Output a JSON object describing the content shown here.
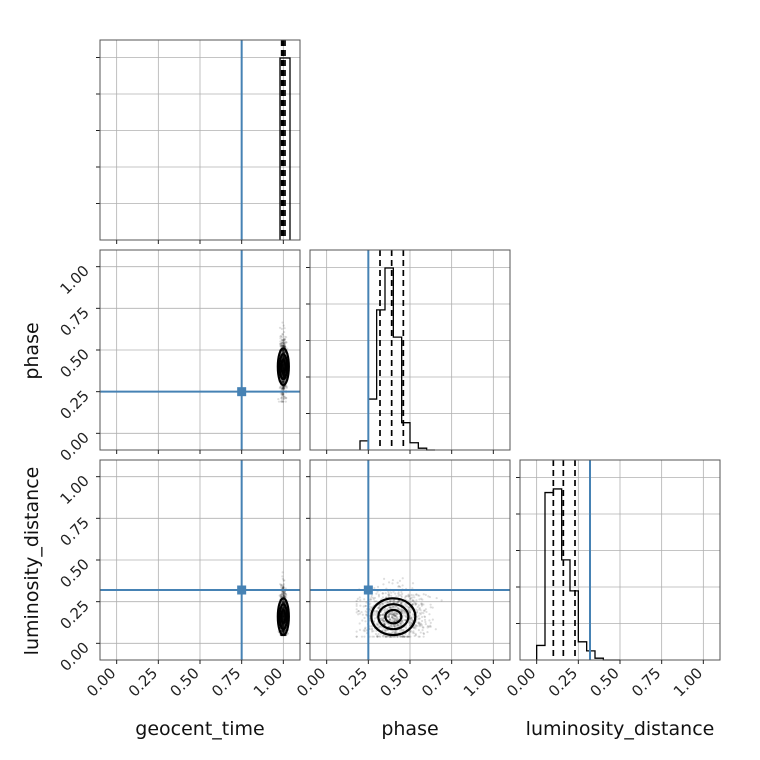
{
  "chart_data": {
    "type": "corner",
    "parameters": [
      "geocent_time",
      "phase",
      "luminosity_distance"
    ],
    "axis_range": [
      -0.1,
      1.1
    ],
    "ticks": [
      "0.00",
      "0.25",
      "0.50",
      "0.75",
      "1.00"
    ],
    "tick_values": [
      0,
      0.25,
      0.5,
      0.75,
      1.0
    ],
    "grid": true,
    "colors": {
      "truth": "#4682b4",
      "samples": "#000000"
    },
    "truths": {
      "geocent_time": 0.75,
      "phase": 0.25,
      "luminosity_distance": 0.32
    },
    "quantiles": {
      "geocent_time": [
        0.99,
        1.0,
        1.01
      ],
      "phase": [
        0.32,
        0.39,
        0.46
      ],
      "luminosity_distance": [
        0.1,
        0.16,
        0.23
      ]
    },
    "marginals": {
      "geocent_time": {
        "bin_edges": [
          0.98,
          1.04
        ],
        "counts": [
          1.0
        ]
      },
      "phase": {
        "bin_edges": [
          0.2,
          0.25,
          0.3,
          0.35,
          0.4,
          0.45,
          0.5,
          0.55,
          0.6,
          0.65
        ],
        "counts": [
          0.05,
          0.28,
          0.77,
          1.0,
          0.62,
          0.15,
          0.04,
          0.01,
          0.0
        ]
      },
      "luminosity_distance": {
        "bin_edges": [
          0.0,
          0.05,
          0.1,
          0.15,
          0.2,
          0.25,
          0.3,
          0.35,
          0.4,
          0.45,
          0.5
        ],
        "counts": [
          0.08,
          0.92,
          0.94,
          0.55,
          0.38,
          0.1,
          0.05,
          0.01,
          0.0,
          0.0
        ]
      }
    },
    "joint": [
      {
        "x": "geocent_time",
        "y": "phase",
        "scatter_range": {
          "x": [
            0.97,
            1.03
          ],
          "y": [
            0.19,
            0.72
          ]
        },
        "center": [
          1.0,
          0.4
        ],
        "spread": [
          0.006,
          0.05
        ]
      },
      {
        "x": "geocent_time",
        "y": "luminosity_distance",
        "scatter_range": {
          "x": [
            0.97,
            1.03
          ],
          "y": [
            0.05,
            0.46
          ]
        },
        "center": [
          1.0,
          0.16
        ],
        "spread": [
          0.006,
          0.05
        ]
      },
      {
        "x": "phase",
        "y": "luminosity_distance",
        "scatter_range": {
          "x": [
            0.18,
            0.72
          ],
          "y": [
            0.04,
            0.47
          ]
        },
        "center": [
          0.4,
          0.16
        ],
        "spread": [
          0.06,
          0.05
        ]
      }
    ]
  }
}
